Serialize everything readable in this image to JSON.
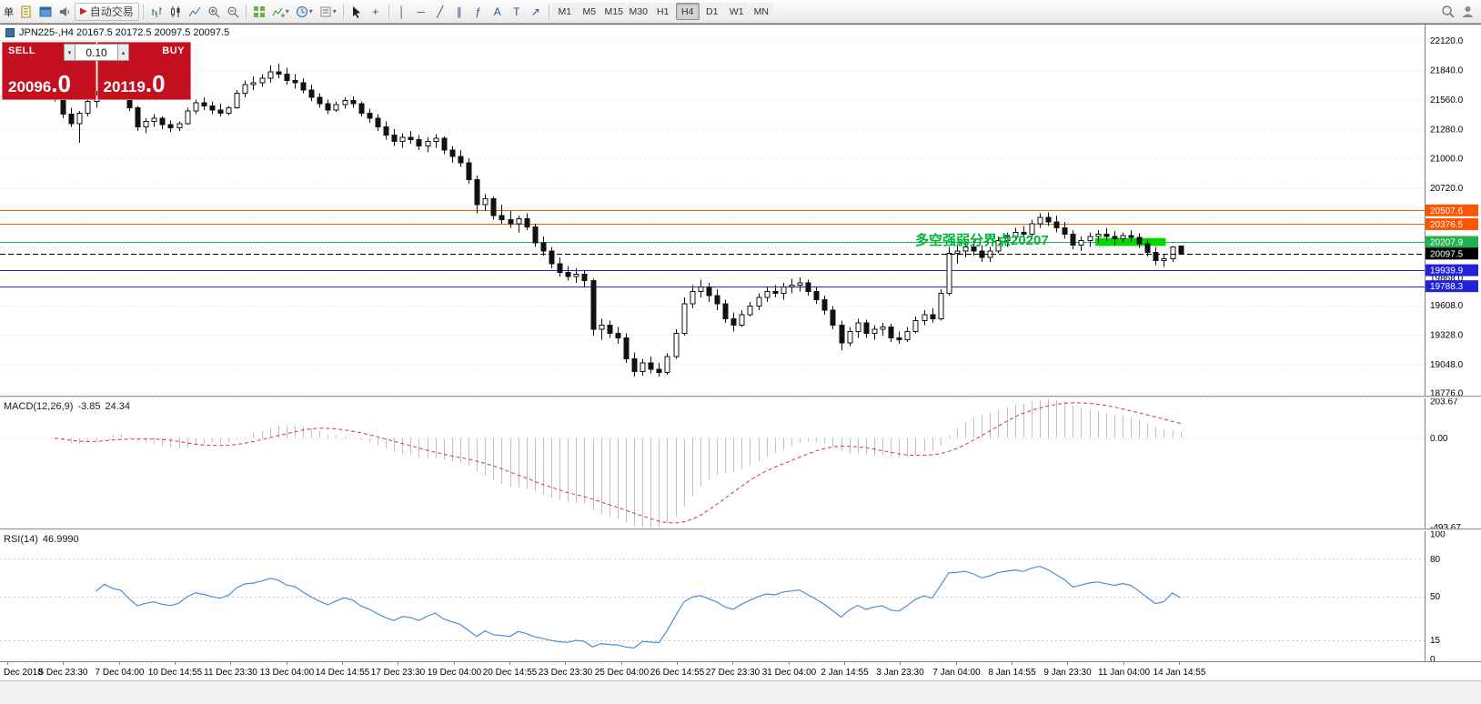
{
  "toolbar": {
    "partial_label": "单",
    "auto_trading_label": "自动交易",
    "timeframes": [
      "M1",
      "M5",
      "M15",
      "M30",
      "H1",
      "H4",
      "D1",
      "W1",
      "MN"
    ],
    "active_timeframe": "H4",
    "icons": [
      "new-order-icon",
      "profiles-icon",
      "sound-icon",
      "auto-trading-icon",
      "bar-chart-icon",
      "candlestick-icon",
      "line-chart-icon",
      "zoom-in-icon",
      "zoom-out-icon",
      "tile-windows-icon",
      "indicators-icon",
      "periods-icon",
      "templates-icon",
      "cursor-icon",
      "crosshair-icon",
      "vertical-line-icon",
      "horizontal-line-icon",
      "trendline-icon",
      "channel-icon",
      "fibonacci-icon",
      "text-icon",
      "label-icon",
      "arrow-icon",
      "search-icon",
      "account-icon"
    ]
  },
  "chart": {
    "symbol_header": "JPN225-,H4  20167.5 20172.5 20097.5 20097.5"
  },
  "one_click": {
    "sell_label": "SELL",
    "buy_label": "BUY",
    "volume": "0.10",
    "sell_price_main": "20096",
    "sell_price_fraction": ".0",
    "buy_price_main": "20119",
    "buy_price_fraction": ".0"
  },
  "indicators": {
    "macd": {
      "label": "MACD(12,26,9)",
      "value": "-3.85",
      "signal_value": "24.34",
      "range": [
        -500,
        220
      ],
      "axis": [
        {
          "text": "203.67",
          "v": 203.67
        },
        {
          "text": "0.00",
          "v": 0
        },
        {
          "text": "-493.67",
          "v": -493.67
        }
      ]
    },
    "rsi": {
      "label": "RSI(14)",
      "value": "46.9990",
      "range": [
        0,
        100
      ],
      "levels": [
        80,
        50,
        15
      ],
      "axis": [
        {
          "text": "100",
          "v": 100
        },
        {
          "text": "80",
          "v": 80
        },
        {
          "text": "50",
          "v": 50
        },
        {
          "text": "15",
          "v": 15
        },
        {
          "text": "0",
          "v": 0
        }
      ]
    }
  },
  "chart_data": {
    "type": "candlestick",
    "symbol": "JPN225-",
    "timeframe": "H4",
    "ohlc_display": {
      "open": "20167.5",
      "high": "20172.5",
      "low": "20097.5",
      "close": "20097.5"
    },
    "price_range": [
      18750,
      22270
    ],
    "price_axis_labels": [
      22120.0,
      21840.0,
      21560.0,
      21280.0,
      21000.0,
      20720.0,
      19868.0,
      19608.0,
      19328.0,
      19048.0,
      18776.0
    ],
    "gridlines": [
      22120,
      21840,
      21560,
      21280,
      21000,
      20720,
      20440,
      20160,
      19868,
      19608,
      19328,
      19048,
      18776
    ],
    "hlines": [
      {
        "value": 20507.6,
        "color": "#ff5500"
      },
      {
        "value": 20376.5,
        "color": "#ff5500"
      },
      {
        "value": 20207.9,
        "color": "#22b14c"
      },
      {
        "value": 19939.9,
        "color": "#2222dd"
      },
      {
        "value": 19788.3,
        "color": "#2222dd"
      }
    ],
    "current_price": 20097.5,
    "annotations": {
      "text": {
        "content": "多空强弱分界点20207",
        "color": "#00b43c",
        "price": 20232,
        "index": 104
      },
      "rect": {
        "color": "#00d800",
        "index_from": 126,
        "index_to": 134.5,
        "price_from": 20170,
        "price_to": 20245
      }
    },
    "colors": {
      "bull": "#ffffff",
      "bear": "#111111",
      "outline": "#111111",
      "grid": "#d9d9d9",
      "macd_hist": "#bfbfbf",
      "macd_signal": "#e03232",
      "rsi_line": "#4a8fd2",
      "axis_text": "#000000"
    },
    "time_labels": [
      "Dec 2018",
      "5 Dec 23:30",
      "7 Dec 04:00",
      "10 Dec 14:55",
      "11 Dec 23:30",
      "13 Dec 04:00",
      "14 Dec 14:55",
      "17 Dec 23:30",
      "19 Dec 04:00",
      "20 Dec 14:55",
      "23 Dec 23:30",
      "25 Dec 04:00",
      "26 Dec 14:55",
      "27 Dec 23:30",
      "31 Dec 04:00",
      "2 Jan 14:55",
      "3 Jan 23:30",
      "7 Jan 04:00",
      "8 Jan 14:55",
      "9 Jan 23:30",
      "11 Jan 04:00",
      "14 Jan 14:55"
    ],
    "candles": [
      [
        21620,
        21700,
        21540,
        21560
      ],
      [
        21560,
        21600,
        21380,
        21420
      ],
      [
        21420,
        21480,
        21300,
        21330
      ],
      [
        21330,
        21450,
        21150,
        21430
      ],
      [
        21430,
        21560,
        21400,
        21540
      ],
      [
        21540,
        21640,
        21480,
        21600
      ],
      [
        21600,
        21870,
        21560,
        21780
      ],
      [
        21780,
        21880,
        21650,
        21700
      ],
      [
        21700,
        21820,
        21620,
        21660
      ],
      [
        21660,
        21700,
        21450,
        21480
      ],
      [
        21480,
        21500,
        21260,
        21300
      ],
      [
        21300,
        21380,
        21240,
        21350
      ],
      [
        21350,
        21420,
        21300,
        21380
      ],
      [
        21380,
        21400,
        21280,
        21320
      ],
      [
        21320,
        21360,
        21250,
        21290
      ],
      [
        21290,
        21350,
        21260,
        21330
      ],
      [
        21330,
        21480,
        21320,
        21450
      ],
      [
        21450,
        21560,
        21420,
        21530
      ],
      [
        21530,
        21580,
        21460,
        21500
      ],
      [
        21500,
        21540,
        21420,
        21460
      ],
      [
        21460,
        21520,
        21400,
        21430
      ],
      [
        21430,
        21500,
        21410,
        21480
      ],
      [
        21480,
        21650,
        21470,
        21620
      ],
      [
        21620,
        21740,
        21580,
        21700
      ],
      [
        21700,
        21780,
        21650,
        21720
      ],
      [
        21720,
        21800,
        21680,
        21760
      ],
      [
        21760,
        21880,
        21720,
        21820
      ],
      [
        21820,
        21900,
        21760,
        21800
      ],
      [
        21800,
        21860,
        21700,
        21740
      ],
      [
        21740,
        21800,
        21660,
        21720
      ],
      [
        21720,
        21760,
        21620,
        21650
      ],
      [
        21650,
        21700,
        21540,
        21580
      ],
      [
        21580,
        21620,
        21480,
        21520
      ],
      [
        21520,
        21560,
        21420,
        21460
      ],
      [
        21460,
        21540,
        21440,
        21510
      ],
      [
        21510,
        21580,
        21470,
        21550
      ],
      [
        21550,
        21590,
        21480,
        21520
      ],
      [
        21520,
        21540,
        21400,
        21430
      ],
      [
        21430,
        21470,
        21340,
        21380
      ],
      [
        21380,
        21420,
        21260,
        21300
      ],
      [
        21300,
        21350,
        21180,
        21220
      ],
      [
        21220,
        21280,
        21120,
        21160
      ],
      [
        21160,
        21240,
        21100,
        21200
      ],
      [
        21200,
        21260,
        21140,
        21180
      ],
      [
        21180,
        21220,
        21080,
        21120
      ],
      [
        21120,
        21200,
        21060,
        21160
      ],
      [
        21160,
        21230,
        21100,
        21190
      ],
      [
        21190,
        21210,
        21040,
        21080
      ],
      [
        21080,
        21120,
        20960,
        21020
      ],
      [
        21020,
        21080,
        20920,
        20960
      ],
      [
        20960,
        21000,
        20760,
        20800
      ],
      [
        20800,
        20840,
        20480,
        20560
      ],
      [
        20560,
        20660,
        20500,
        20620
      ],
      [
        20620,
        20640,
        20420,
        20460
      ],
      [
        20460,
        20560,
        20380,
        20420
      ],
      [
        20420,
        20500,
        20340,
        20380
      ],
      [
        20380,
        20460,
        20300,
        20430
      ],
      [
        20430,
        20480,
        20320,
        20350
      ],
      [
        20350,
        20380,
        20160,
        20200
      ],
      [
        20200,
        20260,
        20080,
        20120
      ],
      [
        20120,
        20160,
        19960,
        20000
      ],
      [
        20000,
        20060,
        19880,
        19920
      ],
      [
        19920,
        19980,
        19840,
        19880
      ],
      [
        19880,
        19960,
        19820,
        19900
      ],
      [
        19900,
        19940,
        19780,
        19840
      ],
      [
        19840,
        19860,
        19320,
        19380
      ],
      [
        19380,
        19480,
        19280,
        19420
      ],
      [
        19420,
        19460,
        19300,
        19340
      ],
      [
        19340,
        19400,
        19240,
        19300
      ],
      [
        19300,
        19340,
        19060,
        19100
      ],
      [
        19100,
        19160,
        18930,
        18980
      ],
      [
        18980,
        19100,
        18940,
        19060
      ],
      [
        19060,
        19120,
        18960,
        19000
      ],
      [
        19000,
        19060,
        18930,
        18970
      ],
      [
        18970,
        19150,
        18950,
        19120
      ],
      [
        19120,
        19380,
        19100,
        19340
      ],
      [
        19340,
        19680,
        19320,
        19620
      ],
      [
        19620,
        19800,
        19580,
        19740
      ],
      [
        19740,
        19850,
        19680,
        19780
      ],
      [
        19780,
        19820,
        19640,
        19700
      ],
      [
        19700,
        19760,
        19560,
        19620
      ],
      [
        19620,
        19660,
        19440,
        19480
      ],
      [
        19480,
        19540,
        19360,
        19420
      ],
      [
        19420,
        19560,
        19400,
        19520
      ],
      [
        19520,
        19640,
        19500,
        19600
      ],
      [
        19600,
        19720,
        19560,
        19680
      ],
      [
        19680,
        19780,
        19640,
        19740
      ],
      [
        19740,
        19800,
        19680,
        19720
      ],
      [
        19720,
        19820,
        19660,
        19780
      ],
      [
        19780,
        19860,
        19720,
        19800
      ],
      [
        19800,
        19870,
        19740,
        19820
      ],
      [
        19820,
        19850,
        19700,
        19740
      ],
      [
        19740,
        19780,
        19620,
        19660
      ],
      [
        19660,
        19700,
        19520,
        19560
      ],
      [
        19560,
        19600,
        19380,
        19420
      ],
      [
        19420,
        19460,
        19180,
        19250
      ],
      [
        19250,
        19400,
        19220,
        19360
      ],
      [
        19360,
        19480,
        19300,
        19440
      ],
      [
        19440,
        19470,
        19300,
        19340
      ],
      [
        19340,
        19420,
        19280,
        19380
      ],
      [
        19380,
        19440,
        19320,
        19400
      ],
      [
        19400,
        19430,
        19260,
        19300
      ],
      [
        19300,
        19360,
        19240,
        19280
      ],
      [
        19280,
        19400,
        19260,
        19360
      ],
      [
        19360,
        19500,
        19340,
        19460
      ],
      [
        19460,
        19560,
        19420,
        19520
      ],
      [
        19520,
        19580,
        19440,
        19480
      ],
      [
        19480,
        19760,
        19460,
        19720
      ],
      [
        19720,
        20160,
        19700,
        20100
      ],
      [
        20100,
        20180,
        20000,
        20120
      ],
      [
        20120,
        20200,
        20060,
        20160
      ],
      [
        20160,
        20220,
        20080,
        20120
      ],
      [
        20120,
        20180,
        20020,
        20060
      ],
      [
        20060,
        20160,
        20020,
        20120
      ],
      [
        20120,
        20260,
        20100,
        20220
      ],
      [
        20220,
        20300,
        20160,
        20260
      ],
      [
        20260,
        20340,
        20220,
        20300
      ],
      [
        20300,
        20360,
        20240,
        20280
      ],
      [
        20280,
        20420,
        20260,
        20380
      ],
      [
        20380,
        20480,
        20340,
        20440
      ],
      [
        20440,
        20490,
        20360,
        20400
      ],
      [
        20400,
        20460,
        20300,
        20340
      ],
      [
        20340,
        20400,
        20240,
        20280
      ],
      [
        20280,
        20320,
        20140,
        20180
      ],
      [
        20180,
        20260,
        20120,
        20220
      ],
      [
        20220,
        20300,
        20160,
        20260
      ],
      [
        20260,
        20320,
        20200,
        20280
      ],
      [
        20280,
        20340,
        20220,
        20260
      ],
      [
        20260,
        20310,
        20180,
        20240
      ],
      [
        20240,
        20300,
        20200,
        20270
      ],
      [
        20270,
        20320,
        20210,
        20250
      ],
      [
        20250,
        20290,
        20150,
        20190
      ],
      [
        20190,
        20230,
        20070,
        20110
      ],
      [
        20110,
        20160,
        19990,
        20030
      ],
      [
        20030,
        20090,
        19970,
        20050
      ],
      [
        20050,
        20170,
        20020,
        20160
      ],
      [
        20167.5,
        20172.5,
        20097.5,
        20097.5
      ]
    ]
  }
}
